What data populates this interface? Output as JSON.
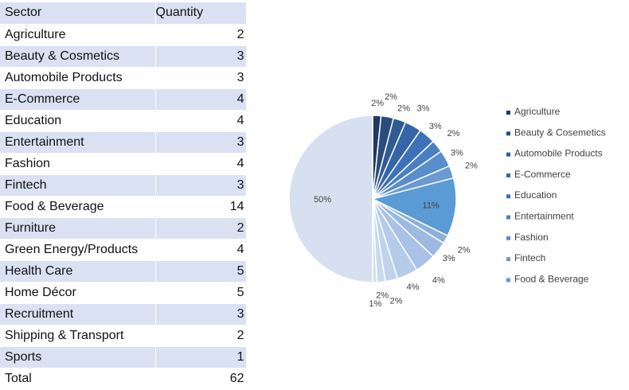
{
  "table": {
    "headers": [
      "Sector",
      "Quantity"
    ],
    "rows": [
      {
        "sector": "Agriculture",
        "quantity": "2"
      },
      {
        "sector": "Beauty & Cosmetics",
        "quantity": "3"
      },
      {
        "sector": "Automobile Products",
        "quantity": "3"
      },
      {
        "sector": "E-Commerce",
        "quantity": "4"
      },
      {
        "sector": "Education",
        "quantity": "4"
      },
      {
        "sector": "Entertainment",
        "quantity": "3"
      },
      {
        "sector": "Fashion",
        "quantity": "4"
      },
      {
        "sector": "Fintech",
        "quantity": "3"
      },
      {
        "sector": "Food & Beverage",
        "quantity": "14"
      },
      {
        "sector": "Furniture",
        "quantity": "2"
      },
      {
        "sector": "Green Energy/Products",
        "quantity": "4"
      },
      {
        "sector": "Health Care",
        "quantity": "5"
      },
      {
        "sector": "Home Décor",
        "quantity": "5"
      },
      {
        "sector": "Recruitment",
        "quantity": "3"
      },
      {
        "sector": "Shipping & Transport",
        "quantity": "2"
      },
      {
        "sector": "Sports",
        "quantity": "1"
      },
      {
        "sector": "Total",
        "quantity": "62"
      }
    ]
  },
  "chart_data": {
    "type": "pie",
    "categories": [
      "Agriculture",
      "Beauty & Cosemetics",
      "Automobile Products",
      "E-Commerce",
      "Education",
      "Entertainment",
      "Fashion",
      "Fintech",
      "Food & Beverage",
      "Furniture",
      "Green Energy/Products",
      "Health Care",
      "Home Décor",
      "Recruitment",
      "Shipping & Transport",
      "Sports",
      "Total"
    ],
    "values": [
      2,
      3,
      3,
      4,
      4,
      3,
      4,
      3,
      14,
      2,
      4,
      5,
      5,
      3,
      2,
      1,
      62
    ],
    "data_labels": [
      "2%",
      "2%",
      "2%",
      "3%",
      "3%",
      "2%",
      "3%",
      "2%",
      "11%",
      "2%",
      "3%",
      "4%",
      "4%",
      "2%",
      "2%",
      "1%",
      "50%"
    ],
    "legend": [
      "Agriculture",
      "Beauty & Cosemetics",
      "Automobile Products",
      "E-Commerce",
      "Education",
      "Entertainment",
      "Fashion",
      "Fintech",
      "Food & Beverage"
    ],
    "legend_position": "right",
    "colors": [
      "#1f3864",
      "#2a4c7d",
      "#2f5a94",
      "#3565a6",
      "#3d71b8",
      "#4a7fc2",
      "#5a8dcc",
      "#6a99d3",
      "#5b9bd5",
      "#8eaedc",
      "#9db9e1",
      "#a9c2e6",
      "#b4cbe9",
      "#bfd3ec",
      "#c8d9ef",
      "#d0def1",
      "#d6e0f0"
    ]
  }
}
